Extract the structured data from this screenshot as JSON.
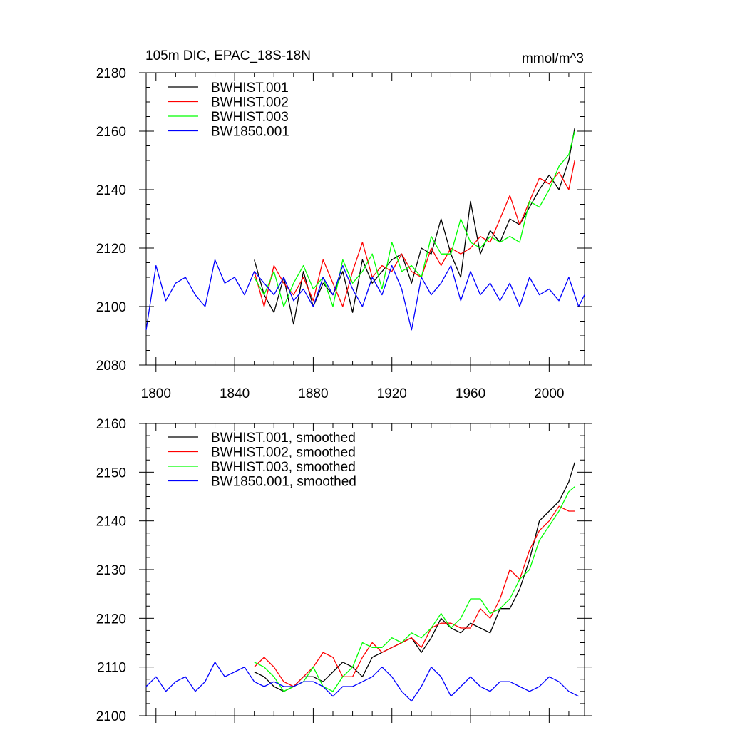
{
  "chart_data": [
    {
      "type": "line",
      "title": "105m DIC, EPAC_18S-18N",
      "units": "mmol/m^3",
      "xlim": [
        1795,
        2018
      ],
      "ylim": [
        2080,
        2180
      ],
      "xticks": [
        1800,
        1840,
        1880,
        1920,
        1960,
        2000
      ],
      "yticks": [
        2080,
        2100,
        2120,
        2140,
        2160,
        2180
      ],
      "legend_position": "top-left",
      "series": [
        {
          "name": "BWHIST.001",
          "color": "#000000",
          "x": [
            1850,
            1855,
            1860,
            1865,
            1870,
            1875,
            1880,
            1885,
            1890,
            1895,
            1900,
            1905,
            1910,
            1915,
            1920,
            1925,
            1930,
            1935,
            1940,
            1945,
            1950,
            1955,
            1960,
            1965,
            1970,
            1975,
            1980,
            1985,
            1990,
            1995,
            2000,
            2005,
            2010,
            2013
          ],
          "y": [
            2116,
            2104,
            2098,
            2110,
            2094,
            2112,
            2100,
            2108,
            2104,
            2112,
            2098,
            2116,
            2108,
            2112,
            2116,
            2118,
            2108,
            2120,
            2118,
            2130,
            2118,
            2110,
            2136,
            2118,
            2126,
            2122,
            2130,
            2128,
            2134,
            2140,
            2145,
            2140,
            2150,
            2161
          ]
        },
        {
          "name": "BWHIST.002",
          "color": "#ff0000",
          "x": [
            1850,
            1855,
            1860,
            1865,
            1870,
            1875,
            1880,
            1885,
            1890,
            1895,
            1900,
            1905,
            1910,
            1915,
            1920,
            1925,
            1930,
            1935,
            1940,
            1945,
            1950,
            1955,
            1960,
            1965,
            1970,
            1975,
            1980,
            1985,
            1990,
            1995,
            2000,
            2005,
            2010,
            2013
          ],
          "y": [
            2112,
            2100,
            2114,
            2108,
            2104,
            2110,
            2102,
            2116,
            2108,
            2100,
            2112,
            2122,
            2110,
            2114,
            2112,
            2118,
            2112,
            2110,
            2120,
            2114,
            2120,
            2118,
            2120,
            2124,
            2122,
            2130,
            2138,
            2128,
            2136,
            2144,
            2142,
            2146,
            2140,
            2150
          ]
        },
        {
          "name": "BWHIST.003",
          "color": "#00ff00",
          "x": [
            1850,
            1855,
            1860,
            1865,
            1870,
            1875,
            1880,
            1885,
            1890,
            1895,
            1900,
            1905,
            1910,
            1915,
            1920,
            1925,
            1930,
            1935,
            1940,
            1945,
            1950,
            1955,
            1960,
            1965,
            1970,
            1975,
            1980,
            1985,
            1990,
            1995,
            2000,
            2005,
            2010,
            2013
          ],
          "y": [
            2110,
            2104,
            2112,
            2100,
            2108,
            2114,
            2106,
            2110,
            2100,
            2116,
            2108,
            2112,
            2118,
            2106,
            2122,
            2112,
            2114,
            2110,
            2124,
            2118,
            2118,
            2130,
            2122,
            2120,
            2124,
            2122,
            2124,
            2122,
            2136,
            2134,
            2140,
            2148,
            2152,
            2160
          ]
        },
        {
          "name": "BW1850.001",
          "color": "#0000ff",
          "x": [
            1795,
            1800,
            1805,
            1810,
            1815,
            1820,
            1825,
            1830,
            1835,
            1840,
            1845,
            1850,
            1855,
            1860,
            1865,
            1870,
            1875,
            1880,
            1885,
            1890,
            1895,
            1900,
            1905,
            1910,
            1915,
            1920,
            1925,
            1930,
            1935,
            1940,
            1945,
            1950,
            1955,
            1960,
            1965,
            1970,
            1975,
            1980,
            1985,
            1990,
            1995,
            2000,
            2005,
            2010,
            2015,
            2018
          ],
          "y": [
            2092,
            2114,
            2102,
            2108,
            2110,
            2104,
            2100,
            2116,
            2108,
            2110,
            2104,
            2112,
            2108,
            2104,
            2110,
            2102,
            2106,
            2100,
            2110,
            2104,
            2114,
            2106,
            2100,
            2110,
            2104,
            2114,
            2106,
            2092,
            2110,
            2104,
            2108,
            2114,
            2102,
            2112,
            2104,
            2108,
            2102,
            2108,
            2100,
            2110,
            2104,
            2106,
            2102,
            2110,
            2100,
            2104
          ]
        }
      ]
    },
    {
      "type": "line",
      "title": "",
      "xlim": [
        1795,
        2018
      ],
      "ylim": [
        2100,
        2160
      ],
      "xticks": [
        1800,
        1840,
        1880,
        1920,
        1960,
        2000
      ],
      "yticks": [
        2100,
        2110,
        2120,
        2130,
        2140,
        2150,
        2160
      ],
      "legend_position": "top-left",
      "series": [
        {
          "name": "BWHIST.001, smoothed",
          "color": "#000000",
          "x": [
            1850,
            1855,
            1860,
            1865,
            1870,
            1875,
            1880,
            1885,
            1890,
            1895,
            1900,
            1905,
            1910,
            1915,
            1920,
            1925,
            1930,
            1935,
            1940,
            1945,
            1950,
            1955,
            1960,
            1965,
            1970,
            1975,
            1980,
            1985,
            1990,
            1995,
            2000,
            2005,
            2010,
            2013
          ],
          "y": [
            2109,
            2108,
            2106,
            2105,
            2106,
            2108,
            2108,
            2107,
            2109,
            2111,
            2110,
            2108,
            2112,
            2113,
            2114,
            2115,
            2116,
            2113,
            2116,
            2120,
            2118,
            2117,
            2119,
            2118,
            2117,
            2122,
            2122,
            2126,
            2132,
            2140,
            2142,
            2144,
            2148,
            2152
          ]
        },
        {
          "name": "BWHIST.002, smoothed",
          "color": "#ff0000",
          "x": [
            1850,
            1855,
            1860,
            1865,
            1870,
            1875,
            1880,
            1885,
            1890,
            1895,
            1900,
            1905,
            1910,
            1915,
            1920,
            1925,
            1930,
            1935,
            1940,
            1945,
            1950,
            1955,
            1960,
            1965,
            1970,
            1975,
            1980,
            1985,
            1990,
            1995,
            2000,
            2005,
            2010,
            2013
          ],
          "y": [
            2110,
            2112,
            2110,
            2107,
            2106,
            2108,
            2110,
            2113,
            2112,
            2108,
            2108,
            2112,
            2115,
            2113,
            2114,
            2115,
            2116,
            2114,
            2118,
            2119,
            2119,
            2118,
            2118,
            2122,
            2120,
            2124,
            2130,
            2128,
            2134,
            2138,
            2140,
            2143,
            2142,
            2142
          ]
        },
        {
          "name": "BWHIST.003, smoothed",
          "color": "#00ff00",
          "x": [
            1850,
            1855,
            1860,
            1865,
            1870,
            1875,
            1880,
            1885,
            1890,
            1895,
            1900,
            1905,
            1910,
            1915,
            1920,
            1925,
            1930,
            1935,
            1940,
            1945,
            1950,
            1955,
            1960,
            1965,
            1970,
            1975,
            1980,
            1985,
            1990,
            1995,
            2000,
            2005,
            2010,
            2013
          ],
          "y": [
            2111,
            2110,
            2108,
            2105,
            2106,
            2107,
            2110,
            2106,
            2105,
            2108,
            2110,
            2115,
            2114,
            2114,
            2116,
            2115,
            2117,
            2116,
            2118,
            2121,
            2118,
            2120,
            2124,
            2124,
            2121,
            2122,
            2124,
            2128,
            2130,
            2136,
            2139,
            2142,
            2146,
            2147
          ]
        },
        {
          "name": "BW1850.001, smoothed",
          "color": "#0000ff",
          "x": [
            1795,
            1800,
            1805,
            1810,
            1815,
            1820,
            1825,
            1830,
            1835,
            1840,
            1845,
            1850,
            1855,
            1860,
            1865,
            1870,
            1875,
            1880,
            1885,
            1890,
            1895,
            1900,
            1905,
            1910,
            1915,
            1920,
            1925,
            1930,
            1935,
            1940,
            1945,
            1950,
            1955,
            1960,
            1965,
            1970,
            1975,
            1980,
            1985,
            1990,
            1995,
            2000,
            2005,
            2010,
            2015
          ],
          "y": [
            2106,
            2108,
            2105,
            2107,
            2108,
            2105,
            2107,
            2111,
            2108,
            2109,
            2110,
            2107,
            2106,
            2107,
            2106,
            2106,
            2107,
            2107,
            2106,
            2104,
            2106,
            2106,
            2107,
            2108,
            2110,
            2108,
            2105,
            2103,
            2106,
            2110,
            2108,
            2104,
            2106,
            2108,
            2106,
            2105,
            2107,
            2107,
            2106,
            2105,
            2106,
            2108,
            2107,
            2105,
            2104
          ]
        }
      ]
    }
  ]
}
